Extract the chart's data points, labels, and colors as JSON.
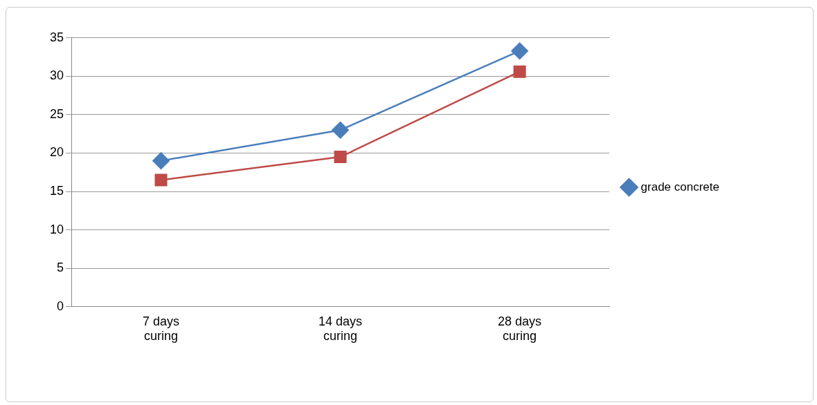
{
  "chart_data": {
    "type": "line",
    "categories": [
      "7 days curing",
      "14 days curing",
      "28 days curing"
    ],
    "series": [
      {
        "name": "grade concrete",
        "color": "#4a7ebb",
        "values": [
          19,
          23,
          33.3
        ],
        "marker": "diamond"
      },
      {
        "color": "#be4b48",
        "values": [
          16.5,
          19.5,
          30.6
        ],
        "marker": "square"
      }
    ],
    "ylim": [
      0,
      35
    ],
    "yticks": [
      0,
      5,
      10,
      15,
      20,
      25,
      30,
      35
    ],
    "grid": "y",
    "legend": "right"
  }
}
